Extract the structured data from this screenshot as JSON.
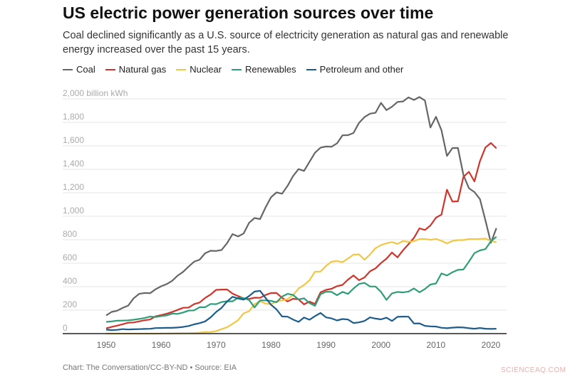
{
  "title": "US electric power generation sources over time",
  "subtitle": "Coal declined significantly as a U.S. source of electricity generation as natural gas and renewable energy increased over the past 15 years.",
  "footer": "Chart: The Conversation/CC-BY-ND • Source: EIA",
  "watermark": "SCIENCEAQ.COM",
  "chart_data": {
    "type": "line",
    "title": "US electric power generation sources over time",
    "ylabel_unit": "billion kWh",
    "xlim": [
      1950,
      2021
    ],
    "ylim": [
      0,
      2000
    ],
    "grid": true,
    "legend": "top",
    "x_ticks": [
      "1950",
      "1960",
      "1970",
      "1980",
      "1990",
      "2000",
      "2010",
      "2020"
    ],
    "y_ticks": [
      "0",
      "200",
      "400",
      "600",
      "800",
      "1,000",
      "1,200",
      "1,400",
      "1,600",
      "1,800",
      "2,000 billion kWh"
    ],
    "x_start": 1950,
    "series": [
      {
        "name": "Coal",
        "color": "#666666",
        "values": [
          155,
          185,
          195,
          219,
          239,
          301,
          339,
          346,
          344,
          378,
          403,
          422,
          450,
          494,
          526,
          571,
          613,
          630,
          685,
          706,
          704,
          713,
          771,
          848,
          828,
          853,
          944,
          985,
          976,
          1075,
          1162,
          1203,
          1192,
          1259,
          1342,
          1402,
          1386,
          1464,
          1541,
          1584,
          1594,
          1592,
          1621,
          1690,
          1691,
          1709,
          1796,
          1845,
          1874,
          1881,
          1966,
          1904,
          1933,
          1974,
          1978,
          2013,
          1991,
          2016,
          1986,
          1756,
          1847,
          1733,
          1514,
          1581,
          1582,
          1352,
          1239,
          1206,
          1146,
          965,
          774,
          898
        ]
      },
      {
        "name": "Natural gas",
        "color": "#d1342b",
        "values": [
          45,
          57,
          68,
          80,
          93,
          95,
          104,
          114,
          120,
          147,
          158,
          169,
          184,
          202,
          220,
          222,
          251,
          265,
          304,
          333,
          373,
          375,
          376,
          341,
          320,
          300,
          295,
          306,
          305,
          329,
          346,
          346,
          305,
          274,
          297,
          292,
          249,
          273,
          253,
          352,
          373,
          382,
          404,
          415,
          460,
          496,
          455,
          479,
          531,
          556,
          601,
          639,
          691,
          650,
          710,
          761,
          816,
          897,
          883,
          921,
          988,
          1014,
          1226,
          1125,
          1127,
          1335,
          1379,
          1297,
          1469,
          1586,
          1624,
          1579
        ]
      },
      {
        "name": "Nuclear",
        "color": "#f2c744",
        "values": [
          0,
          0,
          0,
          0,
          0,
          0,
          0,
          0.01,
          0.2,
          0.2,
          0.5,
          1.7,
          2.3,
          3.2,
          3.3,
          3.7,
          5.5,
          7.7,
          12.5,
          13.9,
          21.8,
          38,
          54,
          83,
          114,
          173,
          191,
          251,
          276,
          255,
          251,
          273,
          283,
          294,
          328,
          384,
          414,
          455,
          527,
          529,
          577,
          613,
          619,
          610,
          640,
          673,
          675,
          629,
          674,
          728,
          754,
          769,
          780,
          764,
          789,
          782,
          787,
          806,
          806,
          799,
          807,
          790,
          769,
          789,
          797,
          797,
          806,
          805,
          807,
          809,
          790,
          778
        ]
      },
      {
        "name": "Renewables",
        "color": "#2f9e78",
        "values": [
          100,
          104,
          110,
          111,
          113,
          118,
          125,
          133,
          145,
          141,
          149,
          155,
          170,
          168,
          180,
          196,
          198,
          225,
          225,
          253,
          251,
          269,
          276,
          275,
          305,
          303,
          286,
          223,
          283,
          283,
          279,
          267,
          316,
          339,
          330,
          291,
          301,
          260,
          237,
          336,
          357,
          356,
          327,
          356,
          338,
          384,
          423,
          433,
          401,
          401,
          356,
          287,
          343,
          355,
          351,
          358,
          385,
          352,
          380,
          418,
          427,
          513,
          495,
          523,
          543,
          546,
          613,
          686,
          709,
          720,
          787,
          825
        ]
      },
      {
        "name": "Petroleum and other",
        "color": "#1c5d8c",
        "values": [
          34,
          30,
          32,
          38,
          35,
          37,
          38,
          40,
          41,
          47,
          48,
          49,
          49,
          52,
          57,
          65,
          79,
          89,
          104,
          138,
          184,
          220,
          274,
          314,
          300,
          289,
          320,
          358,
          365,
          304,
          246,
          206,
          146,
          144,
          120,
          100,
          137,
          118,
          149,
          176,
          138,
          130,
          112,
          124,
          120,
          90,
          96,
          108,
          138,
          128,
          121,
          136,
          108,
          143,
          145,
          144,
          86,
          87,
          66,
          62,
          60,
          50,
          46,
          51,
          54,
          52,
          46,
          42,
          48,
          42,
          40,
          42
        ]
      }
    ]
  }
}
